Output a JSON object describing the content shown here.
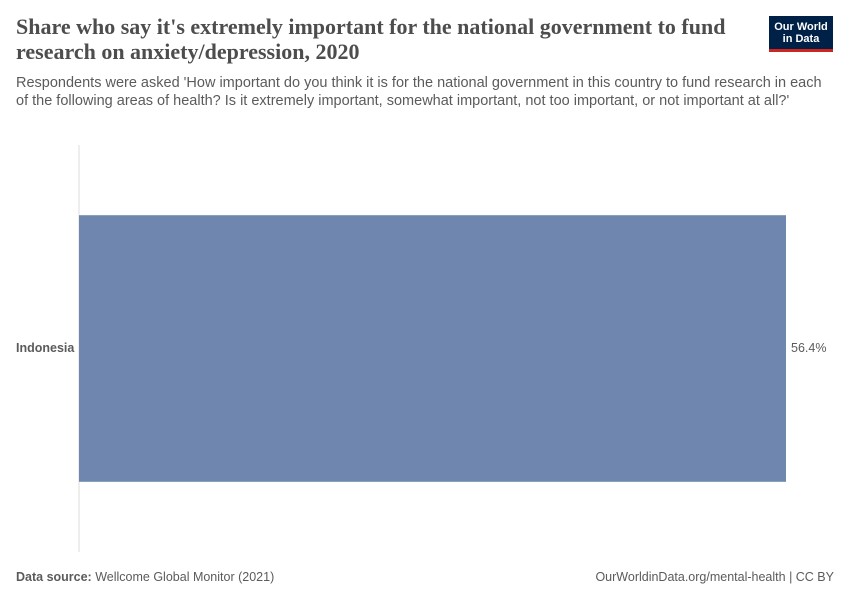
{
  "chart_data": {
    "type": "bar",
    "orientation": "horizontal",
    "title": "Share who say it's extremely important for the national government to fund research on anxiety/depression, 2020",
    "subtitle": "Respondents were asked 'How important do you think it is for the national government in this country to fund research in each of the following areas of health? Is it extremely important, somewhat important, not too important, or not important at all?'",
    "categories": [
      "Indonesia"
    ],
    "values": [
      56.4
    ],
    "value_labels": [
      "56.4%"
    ],
    "color": "#6f87ae",
    "source_label": "Data source:",
    "source": "Wellcome Global Monitor (2021)",
    "url": "OurWorldinData.org/mental-health | CC BY",
    "logo": [
      "Our World",
      "in Data"
    ]
  }
}
